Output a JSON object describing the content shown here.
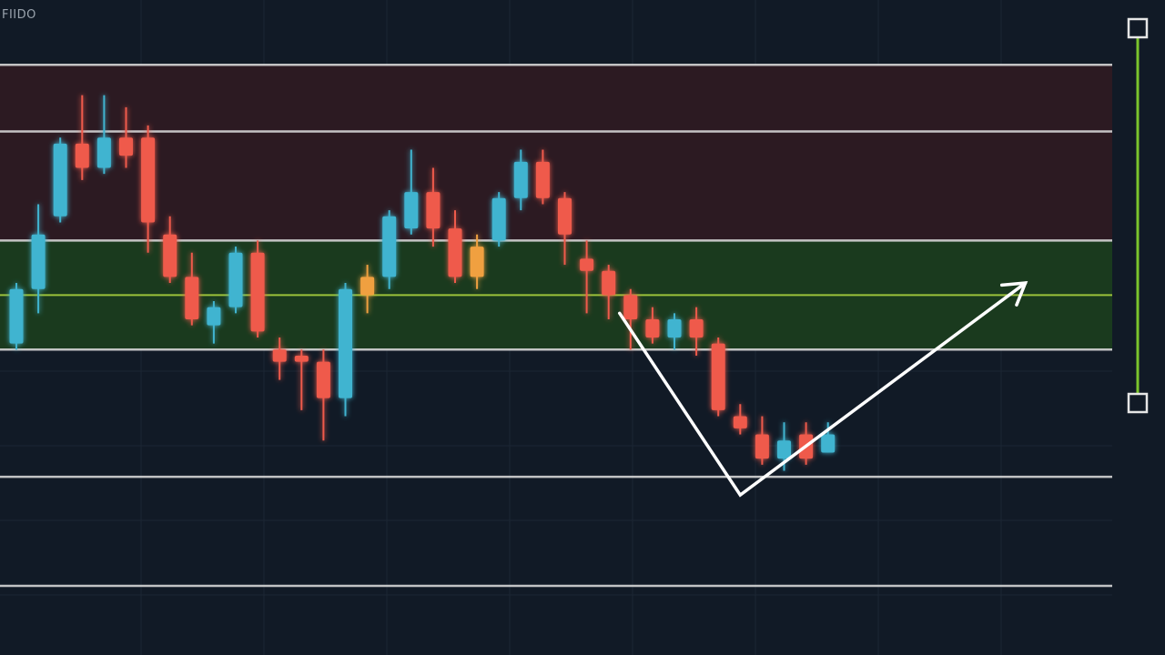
{
  "corner_label": "FIIDO",
  "colors": {
    "background": "#111a26",
    "resistance_zone": "#2c1a22",
    "support_zone": "#1a3a1e",
    "level_line": "#d6d6d6",
    "mid_line": "#9cc23a",
    "bullish": "#3fb4d0",
    "bearish": "#ef5a4c",
    "neutral": "#f0a040",
    "projection": "#ffffff",
    "range_slider": "#7bc42c",
    "grid": "#1c2634"
  },
  "chart_data": {
    "type": "candlestick",
    "title": "",
    "xlabel": "",
    "ylabel": "",
    "ylim": [
      0,
      100
    ],
    "grid": true,
    "levels": [
      92,
      81,
      63,
      45,
      24,
      6
    ],
    "mid_level": 54,
    "zones": [
      {
        "kind": "resistance",
        "from": 63,
        "to": 92
      },
      {
        "kind": "support",
        "from": 45,
        "to": 63
      }
    ],
    "candles": [
      {
        "o": 46,
        "h": 56,
        "l": 45,
        "c": 55,
        "dir": "up"
      },
      {
        "o": 55,
        "h": 69,
        "l": 51,
        "c": 64,
        "dir": "up"
      },
      {
        "o": 67,
        "h": 80,
        "l": 66,
        "c": 79,
        "dir": "up"
      },
      {
        "o": 79,
        "h": 87,
        "l": 73,
        "c": 75,
        "dir": "down"
      },
      {
        "o": 75,
        "h": 87,
        "l": 74,
        "c": 80,
        "dir": "up"
      },
      {
        "o": 80,
        "h": 85,
        "l": 75,
        "c": 77,
        "dir": "down"
      },
      {
        "o": 80,
        "h": 82,
        "l": 61,
        "c": 66,
        "dir": "down"
      },
      {
        "o": 64,
        "h": 67,
        "l": 56,
        "c": 57,
        "dir": "down"
      },
      {
        "o": 57,
        "h": 61,
        "l": 49,
        "c": 50,
        "dir": "down"
      },
      {
        "o": 49,
        "h": 53,
        "l": 46,
        "c": 52,
        "dir": "up"
      },
      {
        "o": 52,
        "h": 62,
        "l": 51,
        "c": 61,
        "dir": "up"
      },
      {
        "o": 61,
        "h": 63,
        "l": 47,
        "c": 48,
        "dir": "down"
      },
      {
        "o": 45,
        "h": 47,
        "l": 40,
        "c": 43,
        "dir": "down"
      },
      {
        "o": 44,
        "h": 45,
        "l": 35,
        "c": 43,
        "dir": "down"
      },
      {
        "o": 43,
        "h": 45,
        "l": 30,
        "c": 37,
        "dir": "down"
      },
      {
        "o": 37,
        "h": 56,
        "l": 34,
        "c": 55,
        "dir": "up"
      },
      {
        "o": 54,
        "h": 59,
        "l": 51,
        "c": 57,
        "dir": "neutral"
      },
      {
        "o": 57,
        "h": 68,
        "l": 55,
        "c": 67,
        "dir": "up"
      },
      {
        "o": 65,
        "h": 78,
        "l": 64,
        "c": 71,
        "dir": "up"
      },
      {
        "o": 71,
        "h": 75,
        "l": 62,
        "c": 65,
        "dir": "down"
      },
      {
        "o": 65,
        "h": 68,
        "l": 56,
        "c": 57,
        "dir": "down"
      },
      {
        "o": 57,
        "h": 64,
        "l": 55,
        "c": 62,
        "dir": "neutral"
      },
      {
        "o": 63,
        "h": 71,
        "l": 62,
        "c": 70,
        "dir": "up"
      },
      {
        "o": 70,
        "h": 78,
        "l": 68,
        "c": 76,
        "dir": "up"
      },
      {
        "o": 76,
        "h": 78,
        "l": 69,
        "c": 70,
        "dir": "down"
      },
      {
        "o": 70,
        "h": 71,
        "l": 59,
        "c": 64,
        "dir": "down"
      },
      {
        "o": 60,
        "h": 63,
        "l": 51,
        "c": 58,
        "dir": "down"
      },
      {
        "o": 58,
        "h": 59,
        "l": 50,
        "c": 54,
        "dir": "down"
      },
      {
        "o": 54,
        "h": 55,
        "l": 45,
        "c": 50,
        "dir": "down"
      },
      {
        "o": 50,
        "h": 52,
        "l": 46,
        "c": 47,
        "dir": "down"
      },
      {
        "o": 47,
        "h": 51,
        "l": 45,
        "c": 50,
        "dir": "up"
      },
      {
        "o": 50,
        "h": 52,
        "l": 44,
        "c": 47,
        "dir": "down"
      },
      {
        "o": 46,
        "h": 47,
        "l": 34,
        "c": 35,
        "dir": "down"
      },
      {
        "o": 34,
        "h": 36,
        "l": 31,
        "c": 32,
        "dir": "down"
      },
      {
        "o": 31,
        "h": 34,
        "l": 26,
        "c": 27,
        "dir": "down"
      },
      {
        "o": 30,
        "h": 33,
        "l": 25,
        "c": 27,
        "dir": "up"
      },
      {
        "o": 31,
        "h": 33,
        "l": 26,
        "c": 27,
        "dir": "down"
      },
      {
        "o": 28,
        "h": 33,
        "l": 28,
        "c": 31,
        "dir": "up"
      }
    ],
    "projection": [
      {
        "x": 27.5,
        "y": 51
      },
      {
        "x": 33,
        "y": 21
      },
      {
        "x": 46,
        "y": 56
      }
    ]
  }
}
